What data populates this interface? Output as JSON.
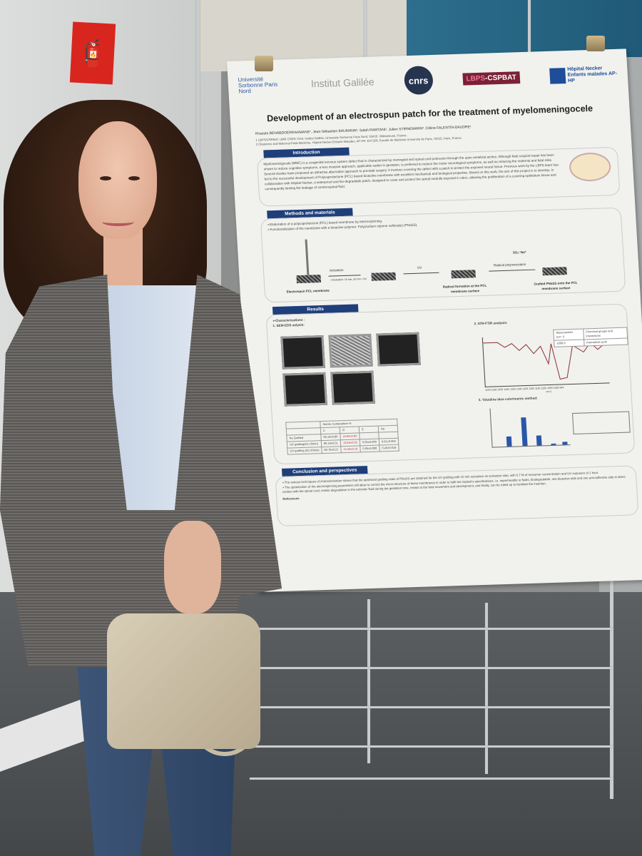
{
  "scene": {
    "wall_sign_icon": "fire-extinguisher-icon",
    "colors": {
      "poster_header": "#1f3f7a",
      "fire_sign": "#d8261f",
      "blue_wall": "#2d6f8d"
    }
  },
  "poster": {
    "logos": {
      "usp": "Université Sorbonne Paris Nord",
      "galilee": "Institut Galilée",
      "cnrs": "cnrs",
      "lbps_a": "LBPS",
      "lbps_b": "-CSPBAT",
      "necker": "Hôpital Necker Enfants malades AP-HP"
    },
    "title": "Development of an electrospun patch for the treatment of myelomeningocele",
    "authors": "Khaoula BENABDOERRAHMANE¹, Jean-Sébastien BAUMANN², Salah RAMTANI¹, Julien STIRNEMANN², Céline FALENTIN-DAUDRE¹",
    "affiliations": [
      "1 LBPS/CSPBAT, UMR CNRS 7244, Institut Galilée, Université Sorbonne Paris Nord, 93430, Villetaneuse, France.",
      "2 Obstetrics and Maternal-Fetal Medicine, Hôpital Necker Enfants Malades, AP-HP; EA7328, Faculté de Médicine Université de Paris, 75015, Paris, France"
    ],
    "introduction": {
      "heading": "Introduction",
      "text": "Myelomeningocele (MMC) is a congenital nervous system defect that is characterized by meningeal and spinal cord protrusion through the open vertebral arches. Although fetal surgical repair has been shown to reduce cognitive symptoms, a less invasive approach, applicable earlier in gestation, is preferred to reduce the motor neurological symptoms, as well as reducing the maternal and fetal risks. Several studies have proposed an attractive alternative approach to prenatal surgery. It involves covering the defect with a patch to protect the exposed neural tissue. Previous work by the LBPS team has led to the successful development of Polycaprolactone (PCL) based bioactive membrane with excellent mechanical and biological properties. Based on this work, the aim of this project is to develop, in collaboration with Hôpital Necker, a waterproof and bio-degradable patch, designed to cover and protect the spinal medulla exposed in utero, allowing the proliferation of a covering epithelium tissue and consequently limiting the leakage of cerebrospinal fluid."
    },
    "methods": {
      "heading": "Methods and materials",
      "bullets": [
        "➢Elaboration of a polycaprolactone (PCL) based membrane by electrospinning.",
        "➢Functionalization of the membrane with a bioactive polymer: Poly(sodium styrene sulfonate) (PNaSS)."
      ],
      "steps": {
        "activation": "Activation",
        "activation_sub": "• Ozonation: 10 min, 20 min  • UV",
        "uv": "UV",
        "radical": "Radical polymerization",
        "monomer": "SO₃⁻Na⁺",
        "cap1": "Electrospun PCL membrane",
        "cap2": "Radical formation at the PCL membrane surface",
        "cap3": "Grafted PNaSS onto the PCL membrane surface"
      }
    },
    "results": {
      "heading": "Results",
      "characterizations": "➢Characterizations :",
      "sem": "1. SEM-EDS anlysis:",
      "ftir": "2. ATR-FTIR analysis:",
      "toluidine": "3. Toluidine blue colorimetric method:",
      "ftir_axis": "1544 1500 1450 1400 1350 1300 1250 1200 1150 1100 1050 1000 944",
      "ftir_unit": "cm-1",
      "ftir_table": [
        "Wavenumber (cm⁻¹)",
        "Chemical groups and interactions",
        "1008.6",
        "Aromatical cycle"
      ],
      "composition_title": "Atomic Composition %",
      "composition_cols": [
        "",
        "C",
        "O",
        "S",
        "Na"
      ],
      "composition_rows": [
        [
          "No Grafted",
          "83.10±0.80",
          "16.89±0.80",
          "",
          ""
        ],
        [
          "UV grafting(Oz 10min)",
          "80.10±0.51",
          "19.84±0.50",
          "0.05±0.000",
          "0.01±0.002"
        ],
        [
          "UV grafting (Oz 20min)",
          "83.79±0.21",
          "15.59±0.16",
          "0.05±0.000",
          "0.43±0.016"
        ]
      ]
    },
    "conclusion": {
      "heading": "Conclusion and perspectives",
      "bullets": [
        "➢The various techniques of characterization shown that the optimized grafting rates of PNaSS are obtained for the UV grafting with 10 min ozonation as activation step, with 0.7 M of monomer concentration and UV exposure of 1 hour.",
        "➢The optimization of the electrospinning parameters will allow to control the micro-structure of these membranes in order to fulfil the implant's specifications, i.e. impermeable to fluids, biodegradable, one bioactive side and one anti-adhesive side in direct contact with the spinal cord, resists degradation in the amniotic fluid during the gestation time, resists to the fetal movement and development, and finally, can be rolled up to facilitate the insertion."
      ],
      "references_heading": "References"
    }
  }
}
